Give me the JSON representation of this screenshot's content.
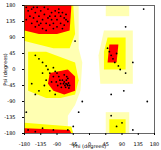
{
  "chart_data": {
    "type": "scatter",
    "x_label": "Phi (degrees)",
    "y_label": "Psi (degrees)",
    "xlim": [
      -180,
      180
    ],
    "ylim": [
      -180,
      180
    ],
    "xticks": [
      -180,
      -135,
      -90,
      -45,
      0,
      45,
      90,
      135,
      180
    ],
    "yticks": [
      -180,
      -135,
      -90,
      -45,
      0,
      45,
      90,
      135,
      180
    ],
    "color": "#000000",
    "marker": "circle",
    "regions": [
      {
        "color": "#ffffb2",
        "points": [
          [
            -180,
            180
          ],
          [
            -30,
            180
          ],
          [
            -30,
            60
          ],
          [
            -20,
            20
          ],
          [
            -25,
            -60
          ],
          [
            -40,
            -100
          ],
          [
            -60,
            -130
          ],
          [
            -60,
            -180
          ],
          [
            -180,
            -180
          ]
        ]
      },
      {
        "color": "#ffffb2",
        "points": [
          [
            30,
            -40
          ],
          [
            120,
            -40
          ],
          [
            120,
            110
          ],
          [
            40,
            110
          ],
          [
            25,
            40
          ]
        ]
      },
      {
        "color": "#ffffb2",
        "points": [
          [
            45,
            -180
          ],
          [
            110,
            -180
          ],
          [
            110,
            -120
          ],
          [
            45,
            -120
          ]
        ]
      },
      {
        "color": "#ffffb2",
        "points": [
          [
            45,
            150
          ],
          [
            110,
            150
          ],
          [
            110,
            180
          ],
          [
            45,
            180
          ]
        ]
      },
      {
        "color": "#ffff00",
        "points": [
          [
            -180,
            180
          ],
          [
            -45,
            180
          ],
          [
            -40,
            100
          ],
          [
            -55,
            60
          ],
          [
            -100,
            60
          ],
          [
            -180,
            80
          ]
        ]
      },
      {
        "color": "#ffff00",
        "points": [
          [
            -170,
            50
          ],
          [
            -120,
            50
          ],
          [
            -40,
            20
          ],
          [
            -30,
            -30
          ],
          [
            -40,
            -70
          ],
          [
            -80,
            -80
          ],
          [
            -120,
            -80
          ],
          [
            -170,
            -60
          ]
        ]
      },
      {
        "color": "#ffff00",
        "points": [
          [
            -180,
            -180
          ],
          [
            -45,
            -180
          ],
          [
            -50,
            -160
          ],
          [
            -180,
            -150
          ]
        ]
      },
      {
        "color": "#ffff00",
        "points": [
          [
            40,
            0
          ],
          [
            100,
            0
          ],
          [
            100,
            90
          ],
          [
            50,
            90
          ],
          [
            40,
            50
          ]
        ]
      },
      {
        "color": "#ffff00",
        "points": [
          [
            55,
            -180
          ],
          [
            100,
            -180
          ],
          [
            100,
            -140
          ],
          [
            55,
            -140
          ]
        ]
      },
      {
        "color": "#ff0000",
        "points": [
          [
            -180,
            180
          ],
          [
            -50,
            180
          ],
          [
            -55,
            110
          ],
          [
            -90,
            100
          ],
          [
            -140,
            100
          ],
          [
            -180,
            110
          ]
        ]
      },
      {
        "color": "#ff0000",
        "points": [
          [
            -110,
            -10
          ],
          [
            -60,
            0
          ],
          [
            -40,
            -20
          ],
          [
            -40,
            -60
          ],
          [
            -70,
            -70
          ],
          [
            -100,
            -60
          ],
          [
            -115,
            -40
          ]
        ]
      },
      {
        "color": "#ff0000",
        "points": [
          [
            -180,
            -180
          ],
          [
            -50,
            -180
          ],
          [
            -55,
            -170
          ],
          [
            -180,
            -165
          ]
        ]
      },
      {
        "color": "#ff0000",
        "points": [
          [
            50,
            20
          ],
          [
            75,
            20
          ],
          [
            80,
            70
          ],
          [
            55,
            70
          ]
        ]
      }
    ],
    "x": [
      -150,
      -140,
      -130,
      -120,
      -160,
      -170,
      -145,
      -135,
      -125,
      -115,
      -110,
      -100,
      -90,
      -80,
      -70,
      -65,
      -75,
      -85,
      -95,
      -105,
      -115,
      -155,
      -165,
      -175,
      -140,
      -130,
      -120,
      -150,
      -160,
      -100,
      -90,
      -80,
      -70,
      -60,
      -65,
      -155,
      -125,
      -110,
      -95,
      -145,
      -135,
      -85,
      -175,
      -75,
      -105,
      -65,
      -60,
      -70,
      -62,
      -58,
      -68,
      -72,
      -64,
      -60,
      -55,
      -75,
      -80,
      -85,
      -90,
      -95,
      -100,
      -110,
      -78,
      -66,
      -57,
      -63,
      -70,
      -82,
      -88,
      -92,
      -105,
      -120,
      -115,
      -100,
      -120,
      -130,
      -140,
      -150,
      -125,
      -110,
      -95,
      -140,
      -160,
      -150,
      -130,
      60,
      55,
      65,
      70,
      80,
      75,
      50,
      85,
      60,
      75,
      90,
      -170,
      -150,
      -130,
      -100,
      -60,
      120,
      100,
      95,
      -30,
      150,
      120,
      -40,
      -20,
      60,
      100,
      160,
      -175,
      -45
    ],
    "y": [
      160,
      150,
      140,
      130,
      170,
      165,
      175,
      165,
      155,
      145,
      125,
      130,
      140,
      150,
      145,
      140,
      160,
      170,
      165,
      160,
      170,
      145,
      150,
      140,
      125,
      115,
      110,
      120,
      130,
      115,
      120,
      130,
      125,
      135,
      155,
      175,
      175,
      150,
      150,
      135,
      130,
      160,
      175,
      115,
      140,
      -40,
      -45,
      -35,
      -42,
      -38,
      -45,
      -40,
      -30,
      -25,
      -45,
      -30,
      -40,
      -20,
      -10,
      -5,
      -20,
      -10,
      -50,
      -50,
      -52,
      -20,
      -15,
      -30,
      -45,
      -35,
      -35,
      -30,
      0,
      5,
      10,
      20,
      30,
      40,
      -45,
      -60,
      -70,
      -60,
      -40,
      -70,
      -10,
      40,
      50,
      30,
      20,
      10,
      45,
      60,
      0,
      -130,
      -160,
      -150,
      -170,
      -175,
      -165,
      -170,
      -170,
      20,
      -10,
      -60,
      -120,
      170,
      -170,
      80,
      -90,
      -70,
      120,
      -90,
      -120,
      -160
    ]
  }
}
